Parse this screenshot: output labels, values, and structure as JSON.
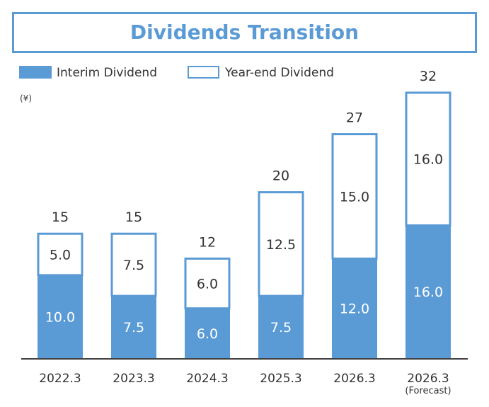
{
  "chart_data": {
    "type": "bar",
    "stacked": true,
    "title": "Dividends Transition",
    "unit_label": "(¥)",
    "categories": [
      "2022.3",
      "2023.3",
      "2024.3",
      "2025.3",
      "2026.3",
      "2026.3"
    ],
    "category_notes": [
      "",
      "",
      "",
      "",
      "",
      "(Forecast)"
    ],
    "series": [
      {
        "name": "Interim Dividend",
        "values": [
          10.0,
          7.5,
          6.0,
          7.5,
          12.0,
          16.0
        ],
        "labels": [
          "10.0",
          "7.5",
          "6.0",
          "7.5",
          "12.0",
          "16.0"
        ],
        "color": "#5B9BD5"
      },
      {
        "name": "Year-end Dividend",
        "values": [
          5.0,
          7.5,
          6.0,
          12.5,
          15.0,
          16.0
        ],
        "labels": [
          "5.0",
          "7.5",
          "6.0",
          "12.5",
          "15.0",
          "16.0"
        ],
        "color": "#FFFFFF"
      }
    ],
    "totals": [
      "15",
      "15",
      "12",
      "20",
      "27",
      "32"
    ],
    "legend_position": "top-left",
    "ylim": [
      0,
      32
    ],
    "grid": false
  },
  "colors": {
    "accent": "#5B9BD5",
    "text": "#333333",
    "axis": "#404040"
  }
}
